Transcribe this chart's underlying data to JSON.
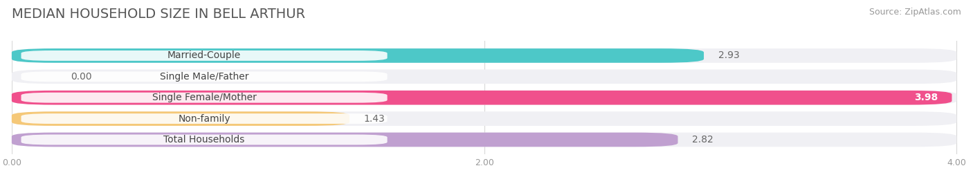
{
  "title": "MEDIAN HOUSEHOLD SIZE IN BELL ARTHUR",
  "source": "Source: ZipAtlas.com",
  "categories": [
    "Married-Couple",
    "Single Male/Father",
    "Single Female/Mother",
    "Non-family",
    "Total Households"
  ],
  "values": [
    2.93,
    0.0,
    3.98,
    1.43,
    2.82
  ],
  "colors": [
    "#4dc8c8",
    "#a8b8e8",
    "#f0508c",
    "#f5c878",
    "#c0a0d0"
  ],
  "bar_bg_color": "#f0f0f4",
  "xlim": [
    0,
    4.0
  ],
  "xticks": [
    0.0,
    2.0,
    4.0
  ],
  "xtick_labels": [
    "0.00",
    "2.00",
    "4.00"
  ],
  "title_fontsize": 14,
  "source_fontsize": 9,
  "label_fontsize": 10,
  "value_fontsize": 10,
  "bar_height": 0.68,
  "bg_color": "#ffffff",
  "value_labels_inside": [
    true,
    false,
    true,
    false,
    true
  ]
}
